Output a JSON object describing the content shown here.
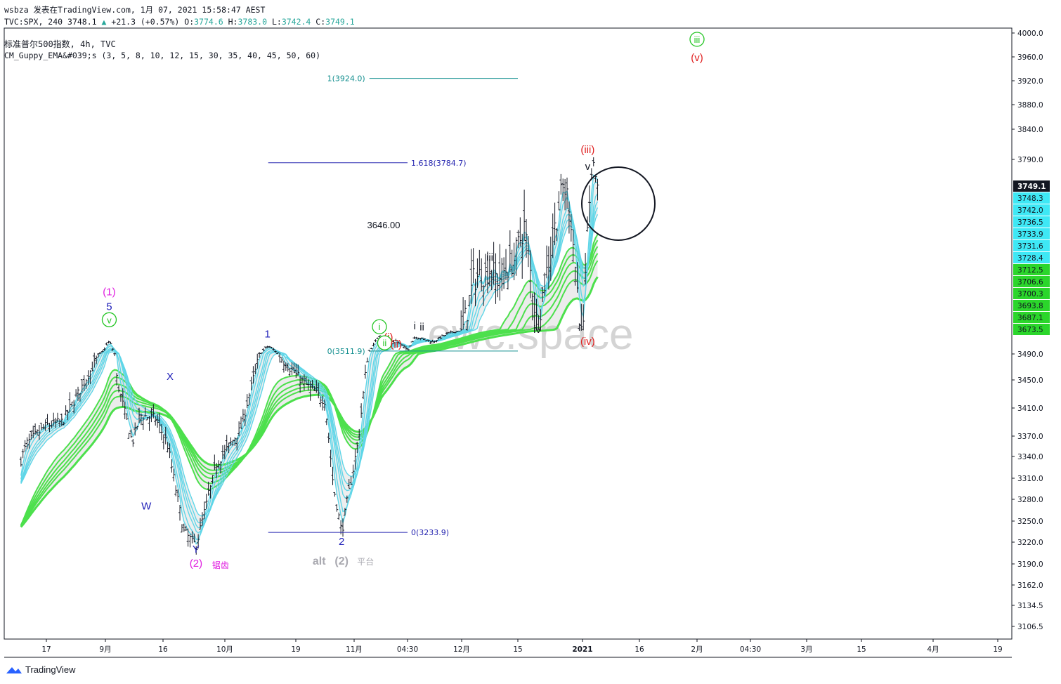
{
  "header": {
    "line1": "wsbza 发表在TradingView.com, 1月 07, 2021 15:58:47 AEST",
    "symbol": "TVC:SPX, 240",
    "last": "3748.1",
    "change": "+21.3 (+0.57%)",
    "open_label": "O:",
    "open": "3774.6",
    "high_label": "H:",
    "high": "3783.0",
    "low_label": "L:",
    "low": "3742.4",
    "close_label": "C:",
    "close": "3749.1",
    "title": "标准普尔500指数, 4h, TVC",
    "indicator": "CM_Guppy_EMA&#039;s (3, 5, 8, 10, 12, 15, 30, 35, 40, 45, 50, 60)"
  },
  "footer": {
    "brand": "TradingView",
    "brand_icon": "tradingview-logo-icon"
  },
  "watermark": "ewc.space",
  "colors": {
    "price_bars": "#131722",
    "ema_short": "#5fd6e8",
    "ema_long": "#4ce04c",
    "ema_short_down": "#9e9e9e",
    "ema_cross_red": "#f44336",
    "fib_blue": "#2626b0",
    "fib_teal": "#138f8f",
    "wave_blue": "#1f1fb8",
    "wave_magenta": "#e020e0",
    "wave_green": "#22c522",
    "wave_red": "#e02020",
    "wave_gray": "#a9a9b0",
    "current_price_bg": "#131722"
  },
  "chart_data": {
    "type": "candlestick",
    "symbol": "TVC:SPX",
    "interval": "4h",
    "title": "标准普尔500指数, 4h, TVC",
    "ylim": [
      3090,
      4010
    ],
    "y_ticks": [
      "4000.0",
      "3960.0",
      "3920.0",
      "3880.0",
      "3840.0",
      "3790.0",
      "3490.0",
      "3450.0",
      "3410.0",
      "3370.0",
      "3340.0",
      "3310.0",
      "3280.0",
      "3250.0",
      "3220.0",
      "3190.0",
      "3162.0",
      "3134.5",
      "3106.5"
    ],
    "x_ticks": [
      "17",
      "9月",
      "16",
      "10月",
      "19",
      "11月",
      "04:30",
      "12月",
      "15",
      "2021",
      "16",
      "2月",
      "04:30",
      "3月",
      "15",
      "4月",
      "19"
    ],
    "price_path": [
      {
        "x": "Aug 10",
        "y": 3330
      },
      {
        "x": "Aug 12",
        "y": 3360
      },
      {
        "x": "Aug 17",
        "y": 3385
      },
      {
        "x": "Aug 21",
        "y": 3390
      },
      {
        "x": "Aug 26",
        "y": 3440
      },
      {
        "x": "Aug 31",
        "y": 3495
      },
      {
        "x": "Sep 2",
        "y": 3588
      },
      {
        "x": "Sep 4",
        "y": 3450
      },
      {
        "x": "Sep 8",
        "y": 3360
      },
      {
        "x": "Sep 10",
        "y": 3400
      },
      {
        "x": "Sep 14",
        "y": 3395
      },
      {
        "x": "Sep 17",
        "y": 3360
      },
      {
        "x": "Sep 21",
        "y": 3235
      },
      {
        "x": "Sep 24",
        "y": 3215
      },
      {
        "x": "Sep 29",
        "y": 3330
      },
      {
        "x": "Oct 5",
        "y": 3380
      },
      {
        "x": "Oct 9",
        "y": 3470
      },
      {
        "x": "Oct 12",
        "y": 3550
      },
      {
        "x": "Oct 15",
        "y": 3485
      },
      {
        "x": "Oct 21",
        "y": 3445
      },
      {
        "x": "Oct 26",
        "y": 3420
      },
      {
        "x": "Oct 28",
        "y": 3300
      },
      {
        "x": "Oct 30",
        "y": 3234
      },
      {
        "x": "Nov 3",
        "y": 3360
      },
      {
        "x": "Nov 6",
        "y": 3510
      },
      {
        "x": "Nov 9",
        "y": 3646
      },
      {
        "x": "Nov 10",
        "y": 3530
      },
      {
        "x": "Nov 13",
        "y": 3590
      },
      {
        "x": "Nov 16",
        "y": 3520
      },
      {
        "x": "Nov 18",
        "y": 3620
      },
      {
        "x": "Nov 23",
        "y": 3580
      },
      {
        "x": "Nov 27",
        "y": 3640
      },
      {
        "x": "Dec 1",
        "y": 3670
      },
      {
        "x": "Dec 4",
        "y": 3700
      },
      {
        "x": "Dec 8",
        "y": 3705
      },
      {
        "x": "Dec 10",
        "y": 3700
      },
      {
        "x": "Dec 14",
        "y": 3710
      },
      {
        "x": "Dec 17",
        "y": 3728
      },
      {
        "x": "Dec 21",
        "y": 3675
      },
      {
        "x": "Dec 24",
        "y": 3705
      },
      {
        "x": "Dec 29",
        "y": 3750
      },
      {
        "x": "Dec 31",
        "y": 3740
      },
      {
        "x": "Jan 4",
        "y": 3663
      },
      {
        "x": "Jan 6",
        "y": 3783
      },
      {
        "x": "Jan 7",
        "y": 3749.1
      }
    ],
    "fib_levels": [
      {
        "label": "1(3924.0)",
        "value": 3924.0
      },
      {
        "label": "1.618(3784.7)",
        "value": 3784.7
      },
      {
        "label": "0(3511.9)",
        "value": 3511.9
      },
      {
        "label": "0(3233.9)",
        "value": 3233.9
      }
    ],
    "price_label": "3646.00",
    "price_labels_axis": [
      {
        "label": "3749.1",
        "kind": "current"
      },
      {
        "label": "3748.3",
        "kind": "ema_short"
      },
      {
        "label": "3742.0",
        "kind": "ema_short"
      },
      {
        "label": "3736.5",
        "kind": "ema_short"
      },
      {
        "label": "3733.9",
        "kind": "ema_short"
      },
      {
        "label": "3731.6",
        "kind": "ema_short"
      },
      {
        "label": "3728.4",
        "kind": "ema_short"
      },
      {
        "label": "3712.5",
        "kind": "ema_long"
      },
      {
        "label": "3706.6",
        "kind": "ema_long"
      },
      {
        "label": "3700.3",
        "kind": "ema_long"
      },
      {
        "label": "3693.8",
        "kind": "ema_long"
      },
      {
        "label": "3687.1",
        "kind": "ema_long"
      },
      {
        "label": "3673.5",
        "kind": "ema_long"
      }
    ],
    "wave_labels": [
      {
        "text": "(1)",
        "color": "magenta",
        "date": "Sep 2",
        "price": 3588
      },
      {
        "text": "5",
        "color": "blue",
        "date": "Sep 2",
        "price": 3588
      },
      {
        "text": "v",
        "color": "green",
        "circled": true,
        "date": "Sep 2",
        "price": 3588
      },
      {
        "text": "W",
        "color": "blue",
        "date": "Sep 8",
        "price": 3360
      },
      {
        "text": "X",
        "color": "blue",
        "date": "Sep 16",
        "price": 3428
      },
      {
        "text": "Y",
        "color": "blue",
        "date": "Sep 24",
        "price": 3215
      },
      {
        "text": "(2)",
        "color": "magenta",
        "date": "Sep 24",
        "price": 3215
      },
      {
        "text": "锯齿",
        "color": "magenta",
        "date": "Sep 24",
        "price": 3215
      },
      {
        "text": "1",
        "color": "blue",
        "date": "Oct 12",
        "price": 3550
      },
      {
        "text": "2",
        "color": "blue",
        "date": "Oct 30",
        "price": 3234
      },
      {
        "text": "alt",
        "color": "gray",
        "date": "Oct 30",
        "price": 3234
      },
      {
        "text": "(2)",
        "color": "gray",
        "date": "Oct 30",
        "price": 3234
      },
      {
        "text": "平台",
        "color": "gray",
        "date": "Oct 30",
        "price": 3234
      },
      {
        "text": "i",
        "color": "green",
        "circled": true,
        "date": "Nov 9",
        "price": 3646
      },
      {
        "text": "(i)",
        "color": "red",
        "date": "Nov 11",
        "price": 3590
      },
      {
        "text": "ii",
        "color": "green",
        "circled": true,
        "date": "Nov 10",
        "price": 3510
      },
      {
        "text": "(ii)",
        "color": "red",
        "date": "Nov 13",
        "price": 3510
      },
      {
        "text": "i",
        "color": "black",
        "date": "Nov 18",
        "price": 3620
      },
      {
        "text": "ii",
        "color": "black",
        "date": "Nov 20",
        "price": 3560
      },
      {
        "text": "iii",
        "color": "black",
        "date": "Dec 8",
        "price": 3705
      },
      {
        "text": "iv",
        "color": "black",
        "date": "Dec 21",
        "price": 3675
      },
      {
        "text": "v",
        "color": "black",
        "date": "Jan 5",
        "price": 3760
      },
      {
        "text": "(iii)",
        "color": "red",
        "date": "Jan 5",
        "price": 3760
      },
      {
        "text": "(iv)",
        "color": "red",
        "date": "Jan 5",
        "price": 3663
      },
      {
        "text": "iii",
        "color": "green",
        "circled": true,
        "date": "Feb 1",
        "price": 3960
      },
      {
        "text": "(v)",
        "color": "red",
        "date": "Feb 1",
        "price": 3960
      }
    ]
  }
}
